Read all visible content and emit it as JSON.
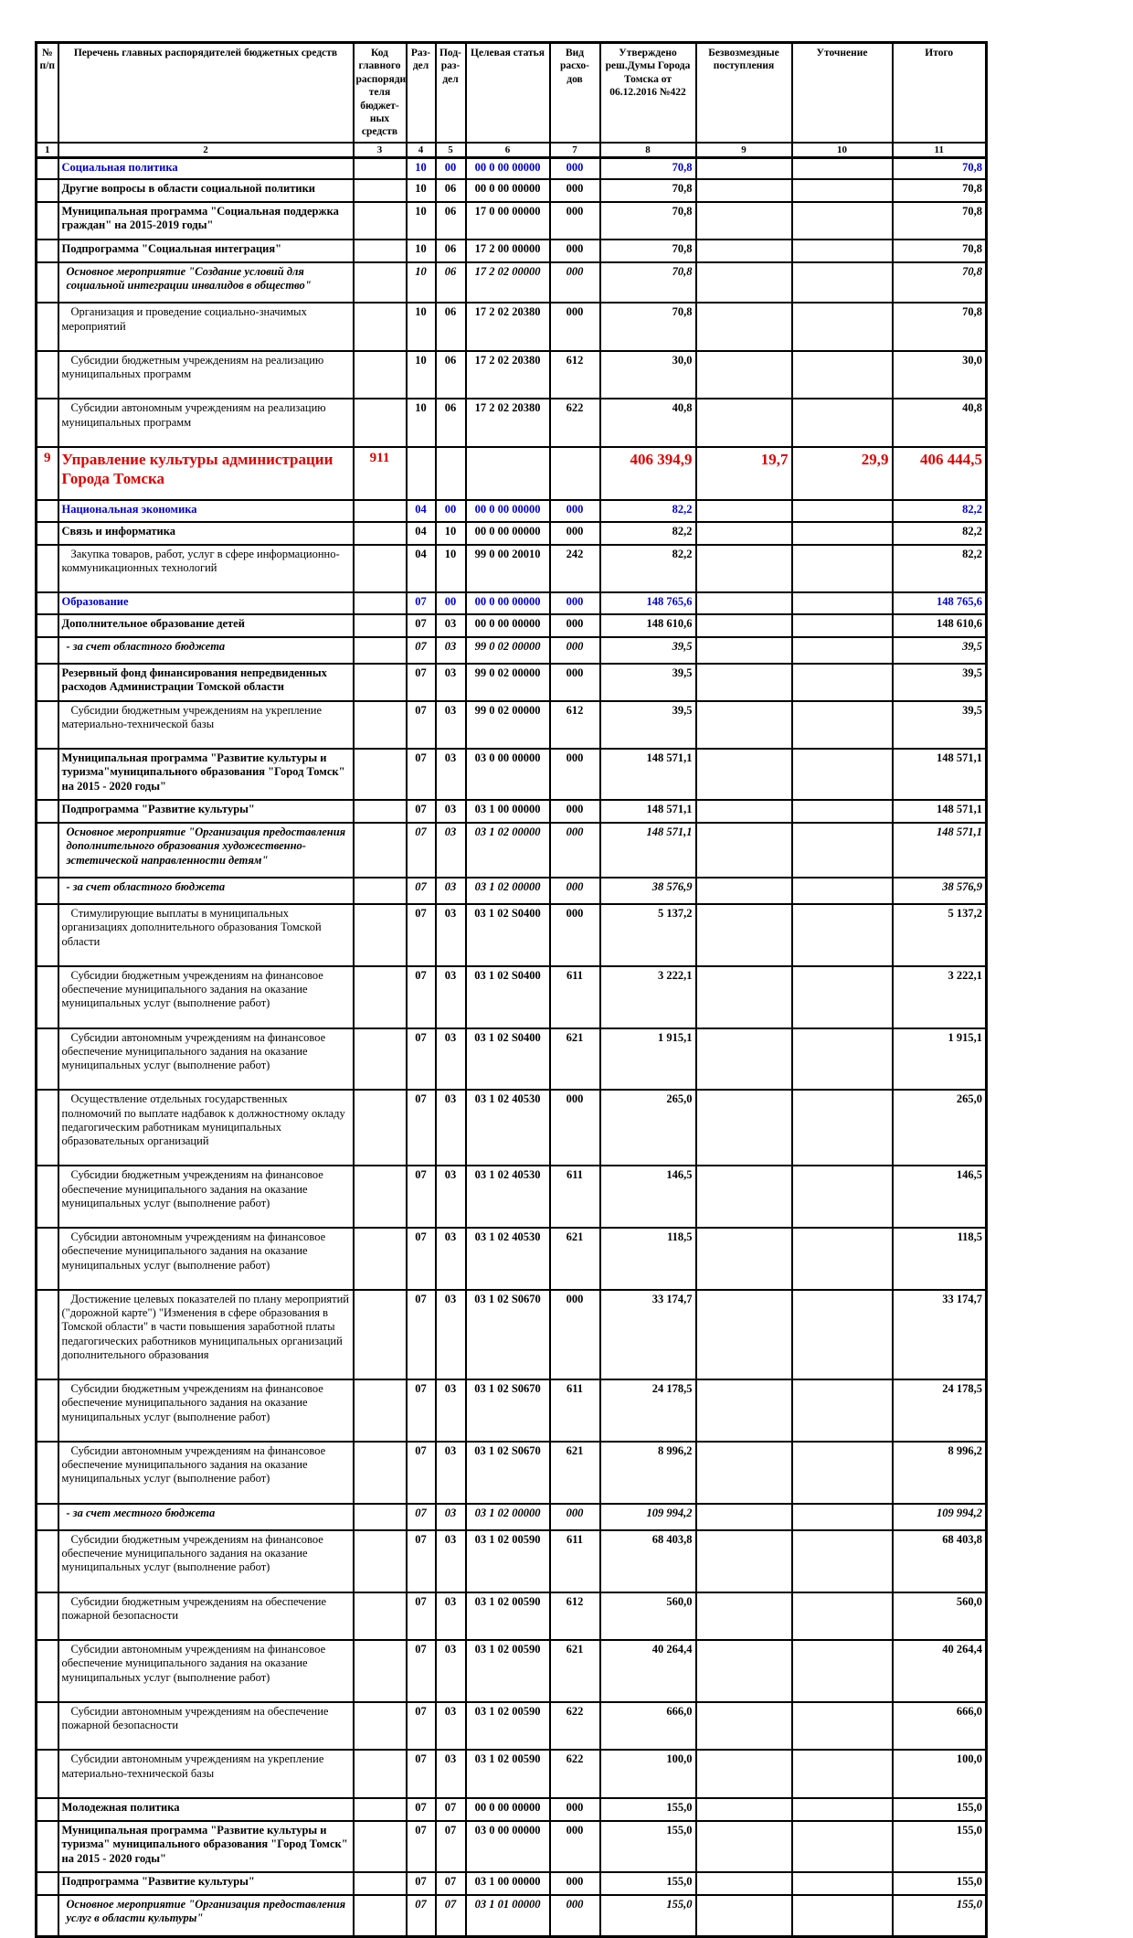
{
  "colors": {
    "section_text": "#0000cc",
    "highlight_text": "#dd0000"
  },
  "table": {
    "columns": [
      {
        "label": "№ п/п"
      },
      {
        "label": "Перечень главных распорядителей бюджетных средств"
      },
      {
        "label": "Код главного распоряди-теля бюджет-ных средств"
      },
      {
        "label": "Раз-дел"
      },
      {
        "label": "Под-раз-дел"
      },
      {
        "label": "Целевая статья"
      },
      {
        "label": "Вид расхо-дов"
      },
      {
        "label": "Утверждено реш.Думы Города Томска от 06.12.2016 №422"
      },
      {
        "label": "Безвозмездные поступления"
      },
      {
        "label": "Уточнение"
      },
      {
        "label": "Итого"
      }
    ],
    "number_row": [
      "1",
      "2",
      "3",
      "4",
      "5",
      "6",
      "7",
      "8",
      "9",
      "10",
      "11"
    ],
    "rows": [
      {
        "style": "sec",
        "no": "",
        "name": "Социальная политика",
        "code": "",
        "rz": "10",
        "pr": "00",
        "csr": "00 0 00 00000",
        "vr": "000",
        "approved": "70,8",
        "grants": "",
        "adjust": "",
        "total": "70,8"
      },
      {
        "style": "b",
        "no": "",
        "name": "Другие вопросы в области социальной политики",
        "code": "",
        "rz": "10",
        "pr": "06",
        "csr": "00 0 00 00000",
        "vr": "000",
        "approved": "70,8",
        "grants": "",
        "adjust": "",
        "total": "70,8"
      },
      {
        "style": "b",
        "no": "",
        "name": "Муниципальная программа \"Социальная поддержка граждан\" на 2015-2019 годы\"",
        "code": "",
        "rz": "10",
        "pr": "06",
        "csr": "17 0 00 00000",
        "vr": "000",
        "approved": "70,8",
        "grants": "",
        "adjust": "",
        "total": "70,8"
      },
      {
        "style": "b",
        "no": "",
        "name": "Подпрограмма \"Социальная интеграция\"",
        "code": "",
        "rz": "10",
        "pr": "06",
        "csr": "17 2 00 00000",
        "vr": "000",
        "approved": "70,8",
        "grants": "",
        "adjust": "",
        "total": "70,8"
      },
      {
        "style": "bi",
        "no": "",
        "name": "Основное мероприятие \"Создание условий для социальной интеграции инвалидов в общество\"",
        "code": "",
        "rz": "10",
        "pr": "06",
        "csr": "17 2 02 00000",
        "vr": "000",
        "approved": "70,8",
        "grants": "",
        "adjust": "",
        "total": "70,8"
      },
      {
        "style": "n",
        "no": "",
        "name": "Организация и проведение социально-значимых мероприятий",
        "code": "",
        "rz": "10",
        "pr": "06",
        "csr": "17 2 02 20380",
        "vr": "000",
        "approved": "70,8",
        "grants": "",
        "adjust": "",
        "total": "70,8"
      },
      {
        "style": "n",
        "no": "",
        "name": "Субсидии бюджетным учреждениям на реализацию муниципальных программ",
        "code": "",
        "rz": "10",
        "pr": "06",
        "csr": "17 2 02 20380",
        "vr": "612",
        "approved": "30,0",
        "grants": "",
        "adjust": "",
        "total": "30,0"
      },
      {
        "style": "n",
        "no": "",
        "name": "Субсидии автономным учреждениям на реализацию муниципальных программ",
        "code": "",
        "rz": "10",
        "pr": "06",
        "csr": "17 2 02 20380",
        "vr": "622",
        "approved": "40,8",
        "grants": "",
        "adjust": "",
        "total": "40,8"
      },
      {
        "style": "main",
        "no": "9",
        "name": "Управление культуры администрации Города Томска",
        "code": "911",
        "rz": "",
        "pr": "",
        "csr": "",
        "vr": "",
        "approved": "406 394,9",
        "grants": "19,7",
        "adjust": "29,9",
        "total": "406 444,5"
      },
      {
        "style": "sec",
        "no": "",
        "name": "Национальная экономика",
        "code": "",
        "rz": "04",
        "pr": "00",
        "csr": "00 0 00 00000",
        "vr": "000",
        "approved": "82,2",
        "grants": "",
        "adjust": "",
        "total": "82,2"
      },
      {
        "style": "b",
        "no": "",
        "name": "Связь и информатика",
        "code": "",
        "rz": "04",
        "pr": "10",
        "csr": "00 0 00 00000",
        "vr": "000",
        "approved": "82,2",
        "grants": "",
        "adjust": "",
        "total": "82,2"
      },
      {
        "style": "n",
        "no": "",
        "name": "Закупка товаров, работ, услуг в сфере информационно-коммуникационных технологий",
        "code": "",
        "rz": "04",
        "pr": "10",
        "csr": "99 0 00 20010",
        "vr": "242",
        "approved": "82,2",
        "grants": "",
        "adjust": "",
        "total": "82,2"
      },
      {
        "style": "sec",
        "no": "",
        "name": "Образование",
        "code": "",
        "rz": "07",
        "pr": "00",
        "csr": "00 0 00 00000",
        "vr": "000",
        "approved": "148 765,6",
        "grants": "",
        "adjust": "",
        "total": "148 765,6"
      },
      {
        "style": "b",
        "no": "",
        "name": "Дополнительное образование детей",
        "code": "",
        "rz": "07",
        "pr": "03",
        "csr": "00 0 00 00000",
        "vr": "000",
        "approved": "148 610,6",
        "grants": "",
        "adjust": "",
        "total": "148 610,6"
      },
      {
        "style": "bi",
        "no": "",
        "name": "- за счет областного бюджета",
        "code": "",
        "rz": "07",
        "pr": "03",
        "csr": "99 0 02 00000",
        "vr": "000",
        "approved": "39,5",
        "grants": "",
        "adjust": "",
        "total": "39,5"
      },
      {
        "style": "b",
        "no": "",
        "name": "Резервный фонд финансирования непредвиденных расходов Администрации Томской области",
        "code": "",
        "rz": "07",
        "pr": "03",
        "csr": "99 0 02 00000",
        "vr": "000",
        "approved": "39,5",
        "grants": "",
        "adjust": "",
        "total": "39,5"
      },
      {
        "style": "n",
        "no": "",
        "name": "Субсидии бюджетным учреждениям на укрепление материально-технической базы",
        "code": "",
        "rz": "07",
        "pr": "03",
        "csr": "99 0 02 00000",
        "vr": "612",
        "approved": "39,5",
        "grants": "",
        "adjust": "",
        "total": "39,5"
      },
      {
        "style": "b",
        "no": "",
        "name": "Муниципальная программа \"Развитие культуры и туризма\"муниципального образования \"Город Томск\" на 2015 - 2020 годы\"",
        "code": "",
        "rz": "07",
        "pr": "03",
        "csr": "03 0 00 00000",
        "vr": "000",
        "approved": "148 571,1",
        "grants": "",
        "adjust": "",
        "total": "148 571,1"
      },
      {
        "style": "b",
        "no": "",
        "name": "Подпрограмма \"Развитие культуры\"",
        "code": "",
        "rz": "07",
        "pr": "03",
        "csr": "03 1 00 00000",
        "vr": "000",
        "approved": "148 571,1",
        "grants": "",
        "adjust": "",
        "total": "148 571,1"
      },
      {
        "style": "bi",
        "no": "",
        "name": "Основное мероприятие \"Организация предоставления дополнительного образования художественно-эстетической направленности детям\"",
        "code": "",
        "rz": "07",
        "pr": "03",
        "csr": "03 1 02 00000",
        "vr": "000",
        "approved": "148 571,1",
        "grants": "",
        "adjust": "",
        "total": "148 571,1"
      },
      {
        "style": "bi",
        "no": "",
        "name": "- за счет областного бюджета",
        "code": "",
        "rz": "07",
        "pr": "03",
        "csr": "03 1 02 00000",
        "vr": "000",
        "approved": "38 576,9",
        "grants": "",
        "adjust": "",
        "total": "38 576,9"
      },
      {
        "style": "n",
        "no": "",
        "name": "Стимулирующие выплаты в муниципальных организациях дополнительного образования Томской области",
        "code": "",
        "rz": "07",
        "pr": "03",
        "csr": "03 1 02 S0400",
        "vr": "000",
        "approved": "5 137,2",
        "grants": "",
        "adjust": "",
        "total": "5 137,2"
      },
      {
        "style": "n",
        "no": "",
        "name": "Субсидии бюджетным учреждениям на финансовое обеспечение муниципального задания на оказание муниципальных услуг (выполнение работ)",
        "code": "",
        "rz": "07",
        "pr": "03",
        "csr": "03 1 02 S0400",
        "vr": "611",
        "approved": "3 222,1",
        "grants": "",
        "adjust": "",
        "total": "3 222,1"
      },
      {
        "style": "n",
        "no": "",
        "name": "Субсидии автономным учреждениям на финансовое обеспечение муниципального задания на оказание муниципальных услуг (выполнение работ)",
        "code": "",
        "rz": "07",
        "pr": "03",
        "csr": "03 1 02 S0400",
        "vr": "621",
        "approved": "1 915,1",
        "grants": "",
        "adjust": "",
        "total": "1 915,1"
      },
      {
        "style": "n",
        "no": "",
        "name": "Осуществление отдельных государственных полномочий по выплате надбавок к должностному окладу педагогическим работникам муниципальных образовательных организаций",
        "code": "",
        "rz": "07",
        "pr": "03",
        "csr": "03 1 02 40530",
        "vr": "000",
        "approved": "265,0",
        "grants": "",
        "adjust": "",
        "total": "265,0"
      },
      {
        "style": "n",
        "no": "",
        "name": "Субсидии бюджетным учреждениям на финансовое обеспечение муниципального задания на оказание муниципальных услуг (выполнение работ)",
        "code": "",
        "rz": "07",
        "pr": "03",
        "csr": "03 1 02 40530",
        "vr": "611",
        "approved": "146,5",
        "grants": "",
        "adjust": "",
        "total": "146,5"
      },
      {
        "style": "n",
        "no": "",
        "name": "Субсидии автономным учреждениям на финансовое обеспечение муниципального задания на оказание муниципальных услуг (выполнение работ)",
        "code": "",
        "rz": "07",
        "pr": "03",
        "csr": "03 1 02 40530",
        "vr": "621",
        "approved": "118,5",
        "grants": "",
        "adjust": "",
        "total": "118,5"
      },
      {
        "style": "n",
        "no": "",
        "name": "Достижение целевых показателей по плану мероприятий (\"дорожной карте\") \"Изменения в сфере образования в Томской области\" в части повышения заработной платы педагогических работников муниципальных организаций дополнительного образования",
        "code": "",
        "rz": "07",
        "pr": "03",
        "csr": "03 1 02 S0670",
        "vr": "000",
        "approved": "33 174,7",
        "grants": "",
        "adjust": "",
        "total": "33 174,7"
      },
      {
        "style": "n",
        "no": "",
        "name": "Субсидии бюджетным учреждениям на финансовое обеспечение муниципального задания на оказание муниципальных услуг (выполнение работ)",
        "code": "",
        "rz": "07",
        "pr": "03",
        "csr": "03 1 02 S0670",
        "vr": "611",
        "approved": "24 178,5",
        "grants": "",
        "adjust": "",
        "total": "24 178,5"
      },
      {
        "style": "n",
        "no": "",
        "name": "Субсидии автономным учреждениям на финансовое обеспечение муниципального задания на оказание муниципальных услуг (выполнение работ)",
        "code": "",
        "rz": "07",
        "pr": "03",
        "csr": "03 1 02 S0670",
        "vr": "621",
        "approved": "8 996,2",
        "grants": "",
        "adjust": "",
        "total": "8 996,2"
      },
      {
        "style": "bi",
        "no": "",
        "name": "- за счет местного бюджета",
        "code": "",
        "rz": "07",
        "pr": "03",
        "csr": "03 1 02 00000",
        "vr": "000",
        "approved": "109 994,2",
        "grants": "",
        "adjust": "",
        "total": "109 994,2"
      },
      {
        "style": "n",
        "no": "",
        "name": "Субсидии бюджетным учреждениям на финансовое обеспечение муниципального задания на оказание муниципальных услуг (выполнение работ)",
        "code": "",
        "rz": "07",
        "pr": "03",
        "csr": "03 1 02 00590",
        "vr": "611",
        "approved": "68 403,8",
        "grants": "",
        "adjust": "",
        "total": "68 403,8"
      },
      {
        "style": "n",
        "no": "",
        "name": "Субсидии бюджетным учреждениям на обеспечение пожарной безопасности",
        "code": "",
        "rz": "07",
        "pr": "03",
        "csr": "03 1 02 00590",
        "vr": "612",
        "approved": "560,0",
        "grants": "",
        "adjust": "",
        "total": "560,0"
      },
      {
        "style": "n",
        "no": "",
        "name": "Субсидии автономным учреждениям на финансовое обеспечение муниципального задания на оказание муниципальных услуг (выполнение работ)",
        "code": "",
        "rz": "07",
        "pr": "03",
        "csr": "03 1 02 00590",
        "vr": "621",
        "approved": "40 264,4",
        "grants": "",
        "adjust": "",
        "total": "40 264,4"
      },
      {
        "style": "n",
        "no": "",
        "name": "Субсидии автономным учреждениям на обеспечение пожарной безопасности",
        "code": "",
        "rz": "07",
        "pr": "03",
        "csr": "03 1 02 00590",
        "vr": "622",
        "approved": "666,0",
        "grants": "",
        "adjust": "",
        "total": "666,0"
      },
      {
        "style": "n",
        "no": "",
        "name": "Субсидии автономным учреждениям на укрепление материально-технической базы",
        "code": "",
        "rz": "07",
        "pr": "03",
        "csr": "03 1 02 00590",
        "vr": "622",
        "approved": "100,0",
        "grants": "",
        "adjust": "",
        "total": "100,0"
      },
      {
        "style": "b",
        "no": "",
        "name": "Молодежная политика",
        "code": "",
        "rz": "07",
        "pr": "07",
        "csr": "00 0 00 00000",
        "vr": "000",
        "approved": "155,0",
        "grants": "",
        "adjust": "",
        "total": "155,0"
      },
      {
        "style": "b",
        "no": "",
        "name": "Муниципальная программа \"Развитие культуры и туризма\" муниципального образования \"Город Томск\" на 2015 - 2020 годы\"",
        "code": "",
        "rz": "07",
        "pr": "07",
        "csr": "03 0 00 00000",
        "vr": "000",
        "approved": "155,0",
        "grants": "",
        "adjust": "",
        "total": "155,0"
      },
      {
        "style": "b",
        "no": "",
        "name": "Подпрограмма \"Развитие культуры\"",
        "code": "",
        "rz": "07",
        "pr": "07",
        "csr": "03 1 00 00000",
        "vr": "000",
        "approved": "155,0",
        "grants": "",
        "adjust": "",
        "total": "155,0"
      },
      {
        "style": "bi",
        "no": "",
        "name": "Основное мероприятие \"Организация предоставления услуг в области культуры\"",
        "code": "",
        "rz": "07",
        "pr": "07",
        "csr": "03 1 01 00000",
        "vr": "000",
        "approved": "155,0",
        "grants": "",
        "adjust": "",
        "total": "155,0"
      }
    ]
  }
}
